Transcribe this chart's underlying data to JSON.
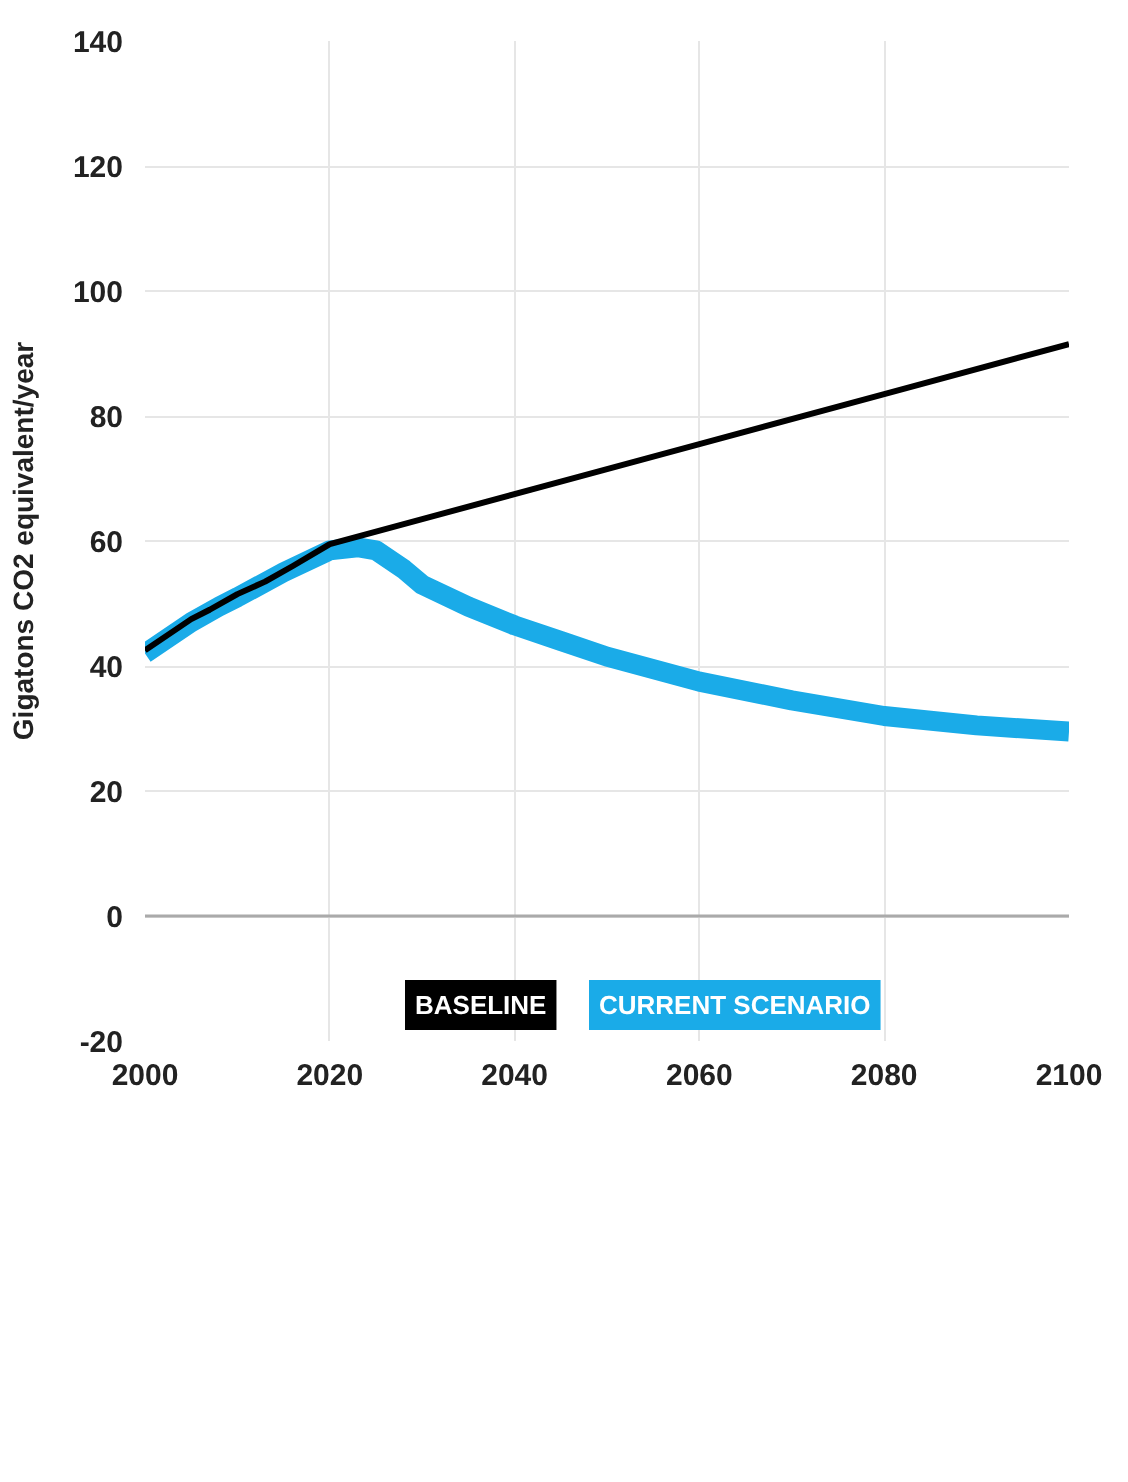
{
  "chart_data": {
    "type": "line",
    "ylabel": "Gigatons CO2 equivalent/year",
    "xlim": [
      2000,
      2100
    ],
    "xticks": [
      2000,
      2020,
      2040,
      2060,
      2080,
      2100
    ],
    "ylim": [
      -20,
      140
    ],
    "yticks": [
      -20,
      0,
      20,
      40,
      60,
      80,
      100,
      120,
      140
    ],
    "grid": true,
    "legend": "left",
    "ref_lines": [
      {
        "axis": "y",
        "value": 0,
        "color": "#aaaaaa"
      }
    ],
    "series": [
      {
        "name": "BASELINE",
        "color": "#000000",
        "x": [
          2000,
          2003,
          2005,
          2007,
          2010,
          2013,
          2016,
          2020,
          2030,
          2047,
          2060,
          2080,
          2100
        ],
        "values": [
          42.5,
          45.5,
          47.5,
          49,
          51.5,
          53.5,
          56,
          59.5,
          63.5,
          70.3,
          75.5,
          83.5,
          91.5
        ]
      },
      {
        "name": "CURRENT SCENARIO",
        "color": "#1aabe8",
        "x": [
          2000,
          2003,
          2005,
          2008,
          2010,
          2015,
          2020,
          2023,
          2025,
          2028,
          2030,
          2035,
          2040,
          2045,
          2050,
          2060,
          2070,
          2080,
          2090,
          2100
        ],
        "values": [
          42,
          45,
          47,
          49.5,
          51,
          55,
          58.5,
          59,
          58.5,
          55.5,
          53,
          49.5,
          46.5,
          44,
          41.5,
          37.5,
          34.5,
          32,
          30.5,
          29.5
        ]
      }
    ]
  }
}
